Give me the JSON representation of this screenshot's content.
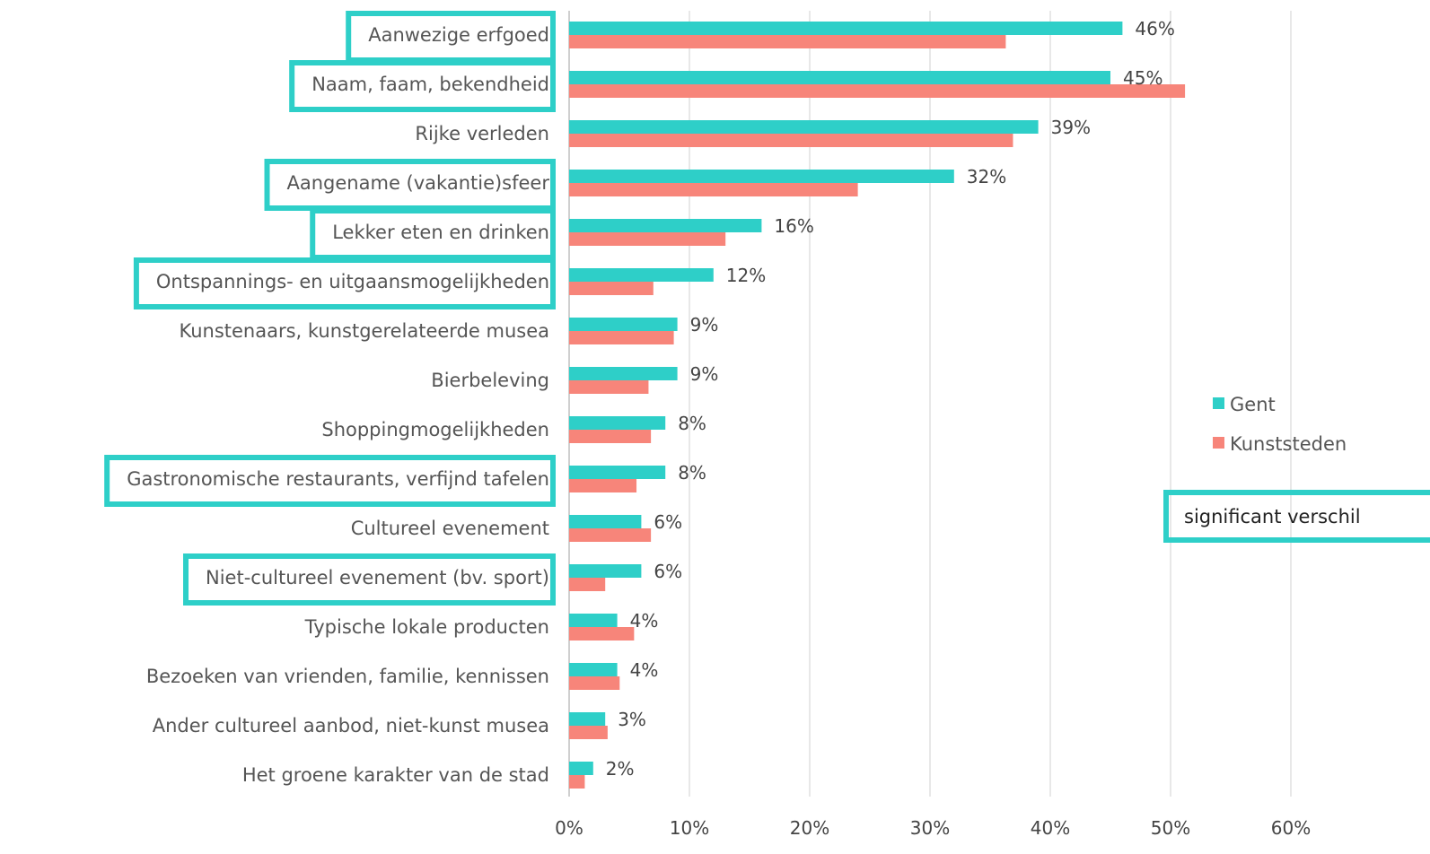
{
  "chart_data": {
    "type": "bar",
    "orientation": "horizontal",
    "categories": [
      "Aanwezige erfgoed",
      "Naam, faam, bekendheid",
      "Rijke verleden",
      "Aangename (vakantie)sfeer",
      "Lekker eten en drinken",
      "Ontspannings- en uitgaansmogelijkheden",
      "Kunstenaars, kunstgerelateerde musea",
      "Bierbeleving",
      "Shoppingmogelijkheden",
      "Gastronomische restaurants, verfijnd tafelen",
      "Cultureel evenement",
      "Niet-cultureel evenement (bv. sport)",
      "Typische lokale producten",
      "Bezoeken van vrienden, familie, kennissen",
      "Ander cultureel aanbod, niet-kunst musea",
      "Het groene karakter van de stad"
    ],
    "highlighted_categories": [
      "Aanwezige erfgoed",
      "Naam, faam, bekendheid",
      "Aangename (vakantie)sfeer",
      "Lekker eten en drinken",
      "Ontspannings- en uitgaansmogelijkheden",
      "Gastronomische restaurants, verfijnd tafelen",
      "Niet-cultureel evenement (bv. sport)"
    ],
    "series": [
      {
        "name": "Gent",
        "color": "#2ecfc8",
        "values": [
          46,
          45,
          39,
          32,
          16,
          12,
          9,
          9,
          8,
          8,
          6,
          6,
          4,
          4,
          3,
          2
        ],
        "labels": [
          "46%",
          "45%",
          "39%",
          "32%",
          "16%",
          "12%",
          "9%",
          "9%",
          "8%",
          "8%",
          "6%",
          "6%",
          "4%",
          "4%",
          "3%",
          "2%"
        ]
      },
      {
        "name": "Kunststeden",
        "color": "#f7857a",
        "values": [
          36.3,
          51.2,
          36.9,
          24,
          13,
          7,
          8.7,
          6.6,
          6.8,
          5.6,
          6.8,
          3,
          5.4,
          4.2,
          3.2,
          1.3
        ]
      }
    ],
    "xaxis": {
      "ticks": [
        0,
        10,
        20,
        30,
        40,
        50,
        60
      ],
      "tick_labels": [
        "0%",
        "10%",
        "20%",
        "30%",
        "40%",
        "50%",
        "60%"
      ],
      "range": [
        0,
        70
      ]
    },
    "grid": "vertical",
    "legend_placement": "right",
    "highlight_color": "#2ecfc8",
    "note": "significant verschil"
  }
}
